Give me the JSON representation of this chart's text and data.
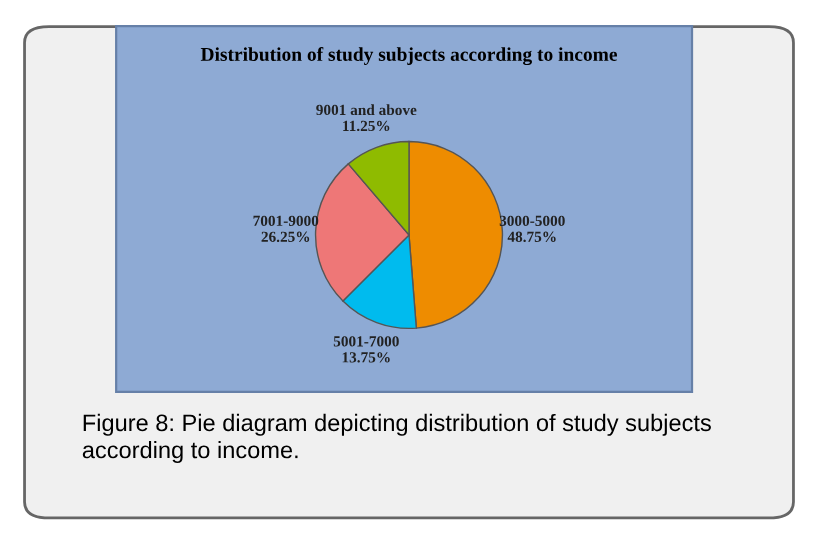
{
  "chart_data": {
    "type": "pie",
    "title": "Distribution of study subjects according to income",
    "categories": [
      "3000-5000",
      "5001-7000",
      "7001-9000",
      "9001 and above"
    ],
    "values": [
      48.75,
      13.75,
      26.25,
      11.25
    ],
    "colors": [
      "#ee8c00",
      "#00bbee",
      "#ee7777",
      "#8fbb00"
    ],
    "value_labels": [
      "48.75%",
      "13.75%",
      "26.25%",
      "11.25%"
    ],
    "legend": false,
    "annotations": [
      "Figure 8: Pie diagram depicting distribution of study subjects according to income."
    ]
  }
}
